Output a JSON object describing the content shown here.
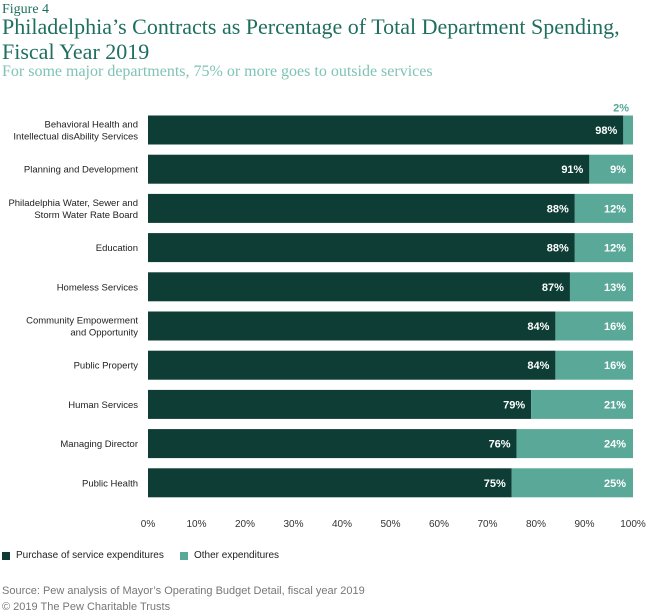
{
  "figure_label": "Figure 4",
  "title": "Philadelphia’s Contracts as Percentage of Total Department Spending, Fiscal Year 2019",
  "subtitle": "For some major departments, 75% or more goes to outside services",
  "colors": {
    "purchase": "#0d3d34",
    "other": "#59a898",
    "title": "#1f6f5f",
    "subtitle": "#7fc3b4"
  },
  "legend": {
    "purchase": "Purchase of service expenditures",
    "other": "Other expenditures"
  },
  "source": "Source: Pew analysis of Mayor’s Operating Budget Detail, fiscal year 2019",
  "copyright": "© 2019 The Pew Charitable Trusts",
  "chart_data": {
    "type": "bar",
    "orientation": "horizontal",
    "stacked": true,
    "categories": [
      [
        "Behavioral Health and",
        "Intellectual disAbility Services"
      ],
      [
        "Planning and Development"
      ],
      [
        "Philadelphia Water, Sewer and",
        "Storm Water Rate Board"
      ],
      [
        "Education"
      ],
      [
        "Homeless Services"
      ],
      [
        "Community Empowerment",
        "and Opportunity"
      ],
      [
        "Public Property"
      ],
      [
        "Human Services"
      ],
      [
        "Managing Director"
      ],
      [
        "Public Health"
      ]
    ],
    "series": [
      {
        "name": "Purchase of service expenditures",
        "values": [
          98,
          91,
          88,
          88,
          87,
          84,
          84,
          79,
          76,
          75
        ],
        "labels": [
          "98%",
          "91%",
          "88%",
          "88%",
          "87%",
          "84%",
          "84%",
          "79%",
          "76%",
          "75%"
        ]
      },
      {
        "name": "Other expenditures",
        "values": [
          2,
          9,
          12,
          12,
          13,
          16,
          16,
          21,
          24,
          25
        ],
        "labels": [
          "2%",
          "9%",
          "12%",
          "12%",
          "13%",
          "16%",
          "16%",
          "21%",
          "24%",
          "25%"
        ]
      }
    ],
    "xlim": [
      0,
      100
    ],
    "xticks": [
      "0%",
      "10%",
      "20%",
      "30%",
      "40%",
      "50%",
      "60%",
      "70%",
      "80%",
      "90%",
      "100%"
    ],
    "xlabel": "",
    "ylabel": ""
  }
}
